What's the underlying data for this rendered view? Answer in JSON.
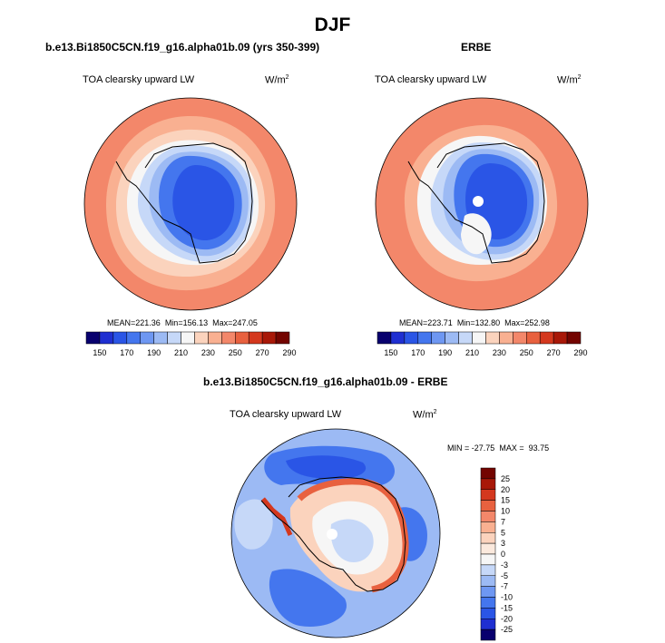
{
  "page": {
    "title": "DJF"
  },
  "panels": [
    {
      "title": "b.e13.Bi1850C5CN.f19_g16.alpha01b.09 (yrs 350-399)",
      "variable": "TOA clearsky upward LW",
      "units_base": "W/m",
      "units_exp": "2",
      "stats": {
        "mean_label": "MEAN=",
        "mean": "221.36",
        "min_label": "Min=",
        "min": "156.13",
        "max_label": "Max=",
        "max": "247.05"
      }
    },
    {
      "title": "ERBE",
      "variable": "TOA clearsky upward LW",
      "units_base": "W/m",
      "units_exp": "2",
      "stats": {
        "mean_label": "MEAN=",
        "mean": "223.71",
        "min_label": "Min=",
        "min": "132.80",
        "max_label": "Max=",
        "max": "252.98"
      }
    },
    {
      "title": "b.e13.Bi1850C5CN.f19_g16.alpha01b.09 - ERBE",
      "variable": "TOA clearsky upward LW",
      "units_base": "W/m",
      "units_exp": "2",
      "stats": {
        "min_label": "MIN =",
        "min": "-27.75",
        "max_label": "MAX =",
        "max": "93.75"
      }
    }
  ],
  "colorbars": {
    "absolute": {
      "labels": [
        "150",
        "170",
        "190",
        "210",
        "230",
        "250",
        "270",
        "290"
      ],
      "colors": [
        "#08006e",
        "#1f2fd1",
        "#2a55e6",
        "#4476ee",
        "#6e97f2",
        "#9cbaf4",
        "#c6d8f8",
        "#f6f6f6",
        "#fbd3bd",
        "#f9b091",
        "#f3876a",
        "#e8613f",
        "#d4381e",
        "#a81808",
        "#730400"
      ]
    },
    "difference": {
      "labels": [
        "25",
        "20",
        "15",
        "10",
        "7",
        "5",
        "3",
        "0",
        "-3",
        "-5",
        "-7",
        "-10",
        "-15",
        "-20",
        "-25"
      ],
      "colors": [
        "#730400",
        "#a81808",
        "#d4381e",
        "#e8613f",
        "#f3876a",
        "#f9b091",
        "#fbd3bd",
        "#fbe9dd",
        "#f6f6f6",
        "#c6d8f8",
        "#9cbaf4",
        "#6e97f2",
        "#4476ee",
        "#2a55e6",
        "#1f2fd1",
        "#08006e"
      ]
    }
  },
  "chart_data": [
    {
      "type": "heatmap",
      "title": "b.e13.Bi1850C5CN.f19_g16.alpha01b.09 (yrs 350-399)",
      "projection": "south-polar-stereographic",
      "variable": "TOA clearsky upward LW",
      "units": "W/m2",
      "levels": [
        150,
        160,
        170,
        180,
        190,
        200,
        210,
        220,
        230,
        240,
        250,
        260,
        270,
        280,
        290
      ],
      "stats": {
        "mean": 221.36,
        "min": 156.13,
        "max": 247.05
      }
    },
    {
      "type": "heatmap",
      "title": "ERBE",
      "projection": "south-polar-stereographic",
      "variable": "TOA clearsky upward LW",
      "units": "W/m2",
      "levels": [
        150,
        160,
        170,
        180,
        190,
        200,
        210,
        220,
        230,
        240,
        250,
        260,
        270,
        280,
        290
      ],
      "stats": {
        "mean": 223.71,
        "min": 132.8,
        "max": 252.98
      }
    },
    {
      "type": "heatmap",
      "title": "b.e13.Bi1850C5CN.f19_g16.alpha01b.09 - ERBE",
      "projection": "south-polar-stereographic",
      "variable": "TOA clearsky upward LW",
      "units": "W/m2",
      "levels": [
        -25,
        -20,
        -15,
        -10,
        -7,
        -5,
        -3,
        0,
        3,
        5,
        7,
        10,
        15,
        20,
        25
      ],
      "stats": {
        "min": -27.75,
        "max": 93.75
      }
    }
  ]
}
